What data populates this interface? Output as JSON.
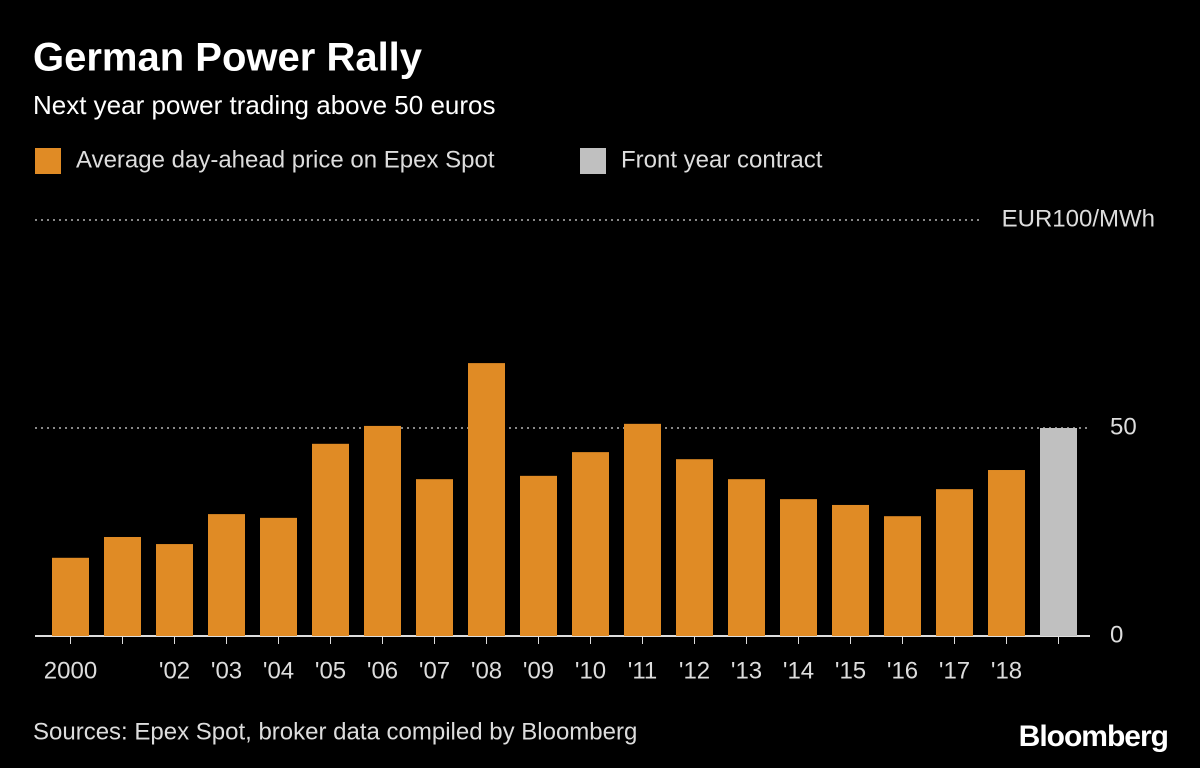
{
  "chart_data": {
    "type": "bar",
    "title": "German Power Rally",
    "subtitle": "Next year power trading above 50 euros",
    "source": "Sources: Epex Spot, broker data compiled by Bloomberg",
    "logo": "Bloomberg",
    "categories": [
      "2000",
      null,
      "'02",
      "'03",
      "'04",
      "'05",
      "'06",
      "'07",
      "'08",
      "'09",
      "'10",
      "'11",
      "'12",
      "'13",
      "'14",
      "'15",
      "'16",
      "'17",
      "'18",
      null
    ],
    "series": [
      {
        "name": "Average day-ahead price on Epex Spot",
        "color": "#e08b25",
        "values": [
          18.8,
          23.8,
          22.1,
          29.3,
          28.4,
          46.2,
          50.5,
          37.7,
          65.6,
          38.5,
          44.2,
          51.0,
          42.5,
          37.7,
          32.9,
          31.5,
          28.8,
          35.3,
          39.9,
          null
        ]
      },
      {
        "name": "Front year contract",
        "color": "#c0c0c0",
        "values": [
          null,
          null,
          null,
          null,
          null,
          null,
          null,
          null,
          null,
          null,
          null,
          null,
          null,
          null,
          null,
          null,
          null,
          null,
          null,
          50
        ]
      }
    ],
    "ylim": [
      0,
      100
    ],
    "yticks": [
      0,
      50,
      {
        "value": 100,
        "label": "EUR100/MWh"
      }
    ],
    "grid": true,
    "legend": "top-left"
  }
}
